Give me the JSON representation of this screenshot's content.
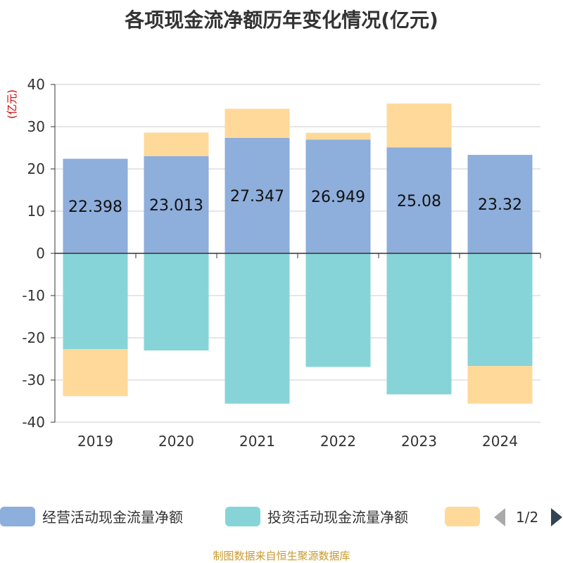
{
  "chart_data": {
    "type": "bar",
    "stacked": true,
    "title": "各项现金流净额历年变化情况(亿元)",
    "ylabel": "(亿元)",
    "ylim": [
      -40,
      40
    ],
    "yticks": [
      40,
      30,
      20,
      10,
      0,
      -10,
      -20,
      -30,
      -40
    ],
    "categories": [
      "2019",
      "2020",
      "2021",
      "2022",
      "2023",
      "2024"
    ],
    "series": [
      {
        "name": "经营活动现金流量净额",
        "color": "#8eaedb",
        "values": [
          22.398,
          23.013,
          27.347,
          26.949,
          25.08,
          23.32
        ],
        "labels": [
          "22.398",
          "23.013",
          "27.347",
          "26.949",
          "25.08",
          "23.32"
        ]
      },
      {
        "name": "投资活动现金流量净额",
        "color": "#87d4d8",
        "values": [
          -22.7,
          -23.0,
          -35.6,
          -26.9,
          -33.4,
          -26.7
        ]
      },
      {
        "name": "",
        "color": "#fed999",
        "values": [
          -11.1,
          5.6,
          6.9,
          1.6,
          10.4,
          -8.9
        ]
      }
    ],
    "legend": {
      "position": "bottom",
      "page": "1/2"
    },
    "source": "制图数据来自恒生聚源数据库"
  }
}
